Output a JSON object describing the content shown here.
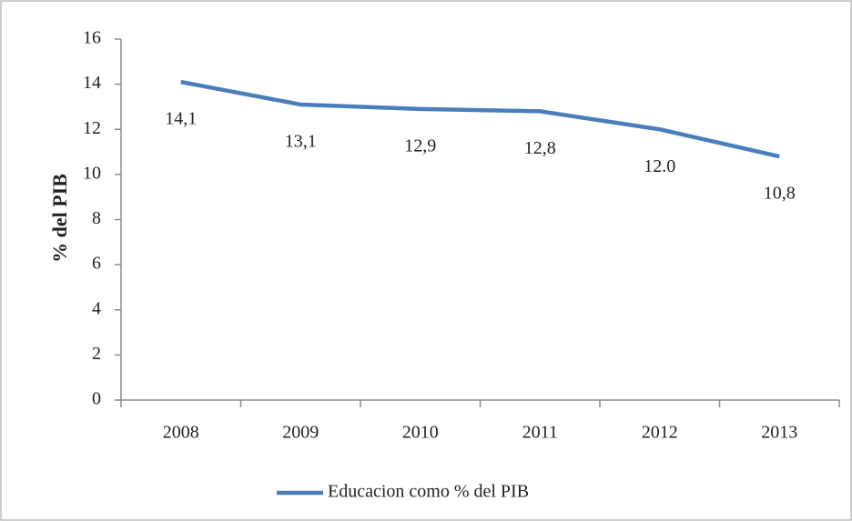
{
  "chart_data": {
    "type": "line",
    "y_label": "% del PIB",
    "categories": [
      "2008",
      "2009",
      "2010",
      "2011",
      "2012",
      "2013"
    ],
    "series": [
      {
        "name": "Educacion como % del PIB",
        "color": "#4a7ebb",
        "values": [
          14.1,
          13.1,
          12.9,
          12.8,
          12.0,
          10.8
        ],
        "value_labels": [
          "14,1",
          "13,1",
          "12,9",
          "12,8",
          "12.0",
          "10,8"
        ]
      }
    ],
    "ylim": [
      0,
      16
    ],
    "yticks": [
      0,
      2,
      4,
      6,
      8,
      10,
      12,
      14,
      16
    ],
    "grid": false,
    "legend": "bottom"
  }
}
